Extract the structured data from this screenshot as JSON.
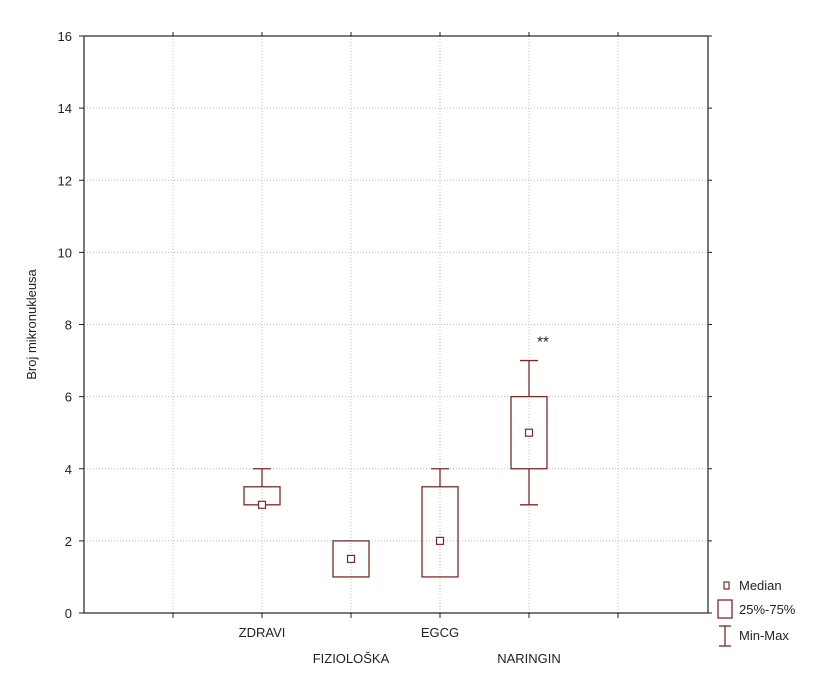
{
  "chart_data": {
    "type": "box",
    "ylabel": "Broj mikronukleusa",
    "ylim": [
      0,
      16
    ],
    "yticks": [
      0,
      2,
      4,
      6,
      8,
      10,
      12,
      14,
      16
    ],
    "ytick_labels": [
      "0",
      "2",
      "4",
      "6",
      "8",
      "10",
      "12",
      "14",
      "16"
    ],
    "grid": true,
    "categories": [
      "ZDRAVI",
      "FIZIOLOŠKA",
      "EGCG",
      "NARINGIN"
    ],
    "boxes": [
      {
        "category": "ZDRAVI",
        "min": 3,
        "q1": 3,
        "median": 3,
        "q3": 3.5,
        "max": 4,
        "annotation": ""
      },
      {
        "category": "FIZIOLOŠKA",
        "min": 1,
        "q1": 1,
        "median": 1.5,
        "q3": 2,
        "max": 2,
        "annotation": ""
      },
      {
        "category": "EGCG",
        "min": 1,
        "q1": 1,
        "median": 2,
        "q3": 3.5,
        "max": 4,
        "annotation": ""
      },
      {
        "category": "NARINGIN",
        "min": 3,
        "q1": 4,
        "median": 5,
        "q3": 6,
        "max": 7,
        "annotation": "**"
      }
    ],
    "legend": {
      "position": "bottom-right",
      "entries": [
        "Median",
        "25%-75%",
        "Min-Max"
      ]
    },
    "colors": {
      "box": "#7a2a2a",
      "grid": "#bdbdbd",
      "axis": "#222222"
    }
  }
}
